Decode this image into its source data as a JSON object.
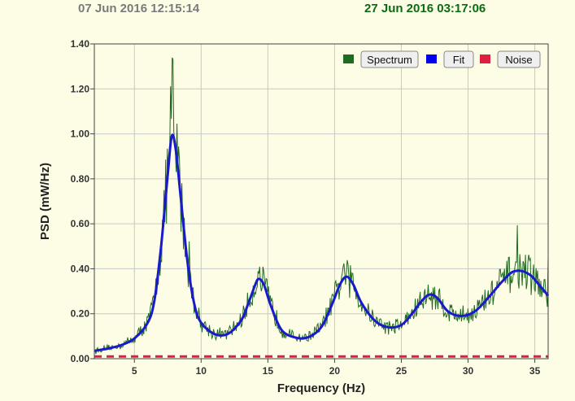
{
  "header": {
    "start_time": "07 Jun 2016  12:15:14",
    "end_time": "27 Jun 2016  03:17:06"
  },
  "legend": [
    {
      "label": "Spectrum",
      "color": "#1f6b1f"
    },
    {
      "label": "Fit",
      "color": "#0000ee"
    },
    {
      "label": "Noise",
      "color": "#dd2040"
    }
  ],
  "colors": {
    "plot_bg": "#fdfde6",
    "spectrum": "#1f6b1f",
    "fit": "#1a1acc",
    "noise": "#dd2040",
    "grid": "#c8c8c8"
  },
  "chart_data": {
    "type": "line",
    "title": "",
    "xlabel": "Frequency (Hz)",
    "ylabel": "PSD (mW/Hz)",
    "xlim": [
      2,
      36
    ],
    "ylim": [
      0,
      1.4
    ],
    "xticks": [
      "5",
      "10",
      "15",
      "20",
      "25",
      "30",
      "35"
    ],
    "yticks": [
      "0.00",
      "0.20",
      "0.40",
      "0.60",
      "0.80",
      "1.00",
      "1.20",
      "1.40"
    ],
    "grid": true,
    "legend_position": "top-right",
    "series": [
      {
        "name": "Fit",
        "x": [
          2,
          3,
          4,
          5,
          6,
          6.5,
          7,
          7.5,
          7.8,
          8.1,
          8.5,
          9,
          9.5,
          10,
          11,
          12,
          13,
          13.5,
          14,
          14.3,
          14.7,
          15.2,
          16,
          17,
          18,
          19,
          19.8,
          20.4,
          20.9,
          21.4,
          22,
          23,
          24,
          25,
          25.8,
          26.5,
          27.1,
          27.7,
          28.5,
          29.5,
          30.5,
          31.5,
          32.5,
          33.3,
          34,
          34.7,
          35.3,
          36
        ],
        "y": [
          0.035,
          0.045,
          0.06,
          0.09,
          0.16,
          0.26,
          0.5,
          0.82,
          0.99,
          0.93,
          0.7,
          0.42,
          0.24,
          0.16,
          0.11,
          0.11,
          0.17,
          0.24,
          0.32,
          0.355,
          0.33,
          0.24,
          0.13,
          0.095,
          0.095,
          0.14,
          0.24,
          0.33,
          0.365,
          0.33,
          0.25,
          0.17,
          0.14,
          0.15,
          0.2,
          0.255,
          0.285,
          0.27,
          0.21,
          0.19,
          0.21,
          0.27,
          0.34,
          0.385,
          0.39,
          0.37,
          0.33,
          0.28
        ]
      },
      {
        "name": "Noise",
        "x": [
          2,
          36
        ],
        "y": [
          0.01,
          0.01
        ]
      }
    ]
  }
}
